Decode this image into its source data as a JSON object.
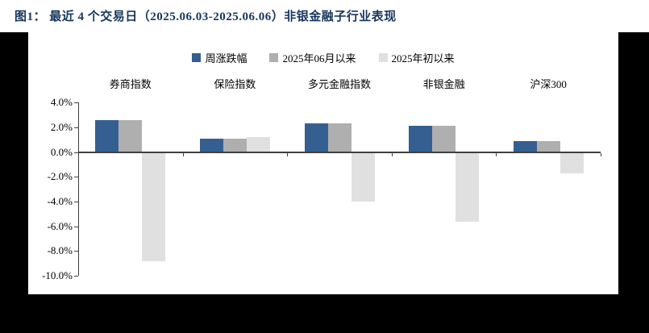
{
  "title": "图1：  最近 4 个交易日（2025.06.03-2025.06.06）非银金融子行业表现",
  "colors": {
    "title_text": "#17365D",
    "series_week": "#365F91",
    "series_june": "#AFAFAF",
    "series_ytd": "#E0E0E0",
    "axis": "#404040",
    "card_background": "#FFFFFF",
    "outside_background": "#000000"
  },
  "chart_data": {
    "type": "bar",
    "title": "最近 4 个交易日（2025.06.03-2025.06.06）非银金融子行业表现",
    "categories": [
      "券商指数",
      "保险指数",
      "多元金融指数",
      "非银金融",
      "沪深300"
    ],
    "series": [
      {
        "name": "周涨跌幅",
        "color": "#365F91",
        "values": [
          2.6,
          1.1,
          2.3,
          2.1,
          0.9
        ]
      },
      {
        "name": "2025年06月以来",
        "color": "#AFAFAF",
        "values": [
          2.6,
          1.1,
          2.3,
          2.1,
          0.9
        ]
      },
      {
        "name": "2025年初以来",
        "color": "#E0E0E0",
        "values": [
          -8.8,
          1.2,
          -4.0,
          -5.6,
          -1.7
        ]
      }
    ],
    "ylim": [
      -10,
      4
    ],
    "ytick_step": 2,
    "ytick_labels": [
      "4.0%",
      "2.0%",
      "0.0%",
      "-2.0%",
      "-4.0%",
      "-6.0%",
      "-8.0%",
      "-10.0%"
    ],
    "grid": false,
    "legend_position": "top-center",
    "category_labels_position": "above-plot"
  }
}
